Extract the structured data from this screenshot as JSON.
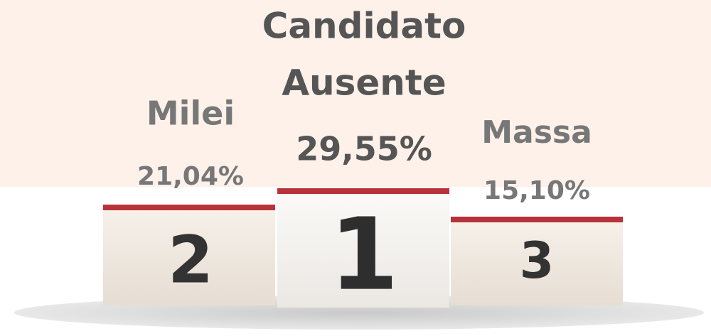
{
  "podium": [
    {
      "rank": "2",
      "name_lines": [
        "Milei"
      ],
      "percent": "21,04%"
    },
    {
      "rank": "1",
      "name_lines": [
        "Candidato",
        "Ausente"
      ],
      "percent": "29,55%"
    },
    {
      "rank": "3",
      "name_lines": [
        "Massa"
      ],
      "percent": "15,10%"
    }
  ]
}
